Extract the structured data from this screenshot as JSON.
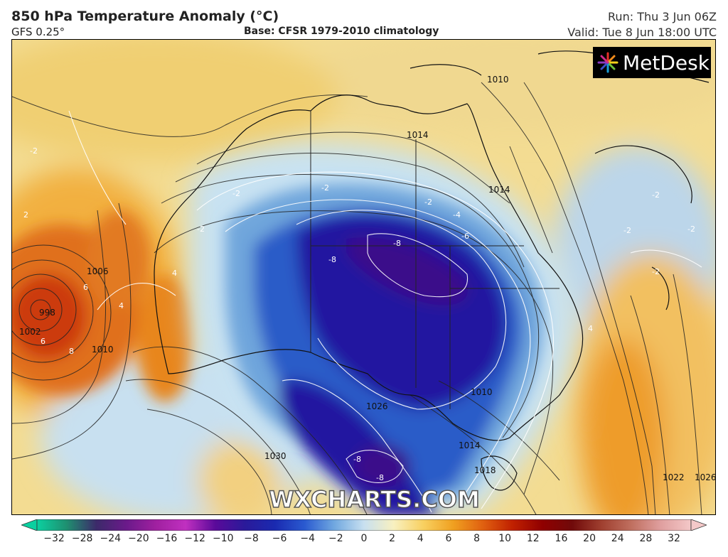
{
  "header": {
    "title": "850 hPa Temperature Anomaly (°C)",
    "model": "GFS 0.25°",
    "base": "Base: CFSR 1979-2010 climatology",
    "run": "Run: Thu 3 Jun 06Z",
    "valid": "Valid: Tue 8 Jun 18:00 UTC"
  },
  "logo": {
    "text": "MetDesk",
    "icon": "metdesk-starburst-icon"
  },
  "watermark": "WXCHARTS.COM",
  "isobar_labels": [
    "1010",
    "1014",
    "1014",
    "1006",
    "998",
    "1002",
    "1010",
    "1010",
    "1014",
    "1018",
    "1030",
    "1026",
    "1022",
    "1026"
  ],
  "anomaly_labels": [
    "-2",
    "-2",
    "-2",
    "-2",
    "-2",
    "-4",
    "-6",
    "-8",
    "-8",
    "-8",
    "-8",
    "2",
    "4",
    "4",
    "6",
    "6",
    "8",
    "4",
    "-2",
    "-2",
    "-2",
    "-2"
  ],
  "colorbar": {
    "ticks": [
      "−32",
      "−28",
      "−24",
      "−20",
      "−16",
      "−12",
      "−10",
      "−8",
      "−6",
      "−4",
      "−2",
      "0",
      "2",
      "4",
      "6",
      "8",
      "10",
      "12",
      "16",
      "20",
      "24",
      "28",
      "32"
    ],
    "colors": [
      "#0bd0a0",
      "#1f8f70",
      "#3c2a6a",
      "#6a1a8a",
      "#a020a0",
      "#c030c0",
      "#5a0a9a",
      "#2a1a9a",
      "#1a2ab0",
      "#2a5ad0",
      "#70a8e0",
      "#c8e0f0",
      "#f8f0c0",
      "#f8d060",
      "#f0a020",
      "#e06010",
      "#c02000",
      "#900000",
      "#700a0a",
      "#a04030",
      "#c07060",
      "#e0a0a0",
      "#f4c8c8"
    ]
  }
}
